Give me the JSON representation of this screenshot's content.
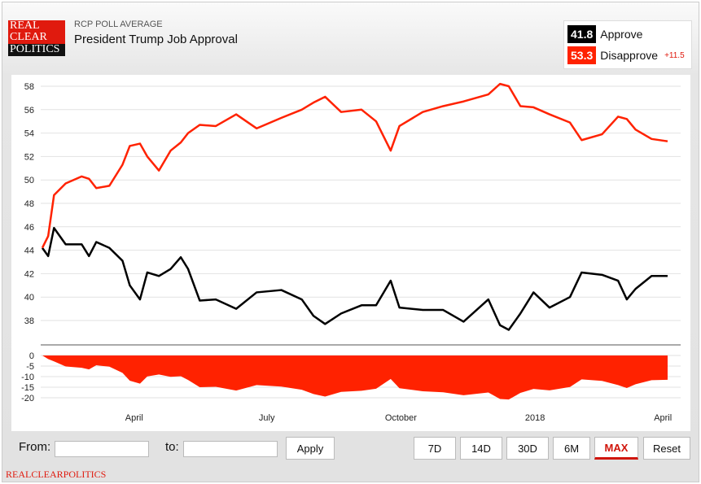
{
  "header": {
    "logo_lines": [
      "REAL",
      "CLEAR",
      "POLITICS"
    ],
    "subtitle": "RCP POLL AVERAGE",
    "title": "President Trump Job Approval"
  },
  "legend": {
    "approve": {
      "value": "41.8",
      "label": "Approve",
      "color": "#000000"
    },
    "disapprove": {
      "value": "53.3",
      "label": "Disapprove",
      "color": "#ff2200"
    },
    "spread": "+11.5"
  },
  "controls": {
    "from_label": "From:",
    "from_value": "",
    "to_label": "to:",
    "to_value": "",
    "apply": "Apply",
    "ranges": [
      "7D",
      "14D",
      "30D",
      "6M",
      "MAX",
      "Reset"
    ],
    "active": "MAX"
  },
  "footer": "REALCLEARPOLITICS",
  "chart_data": {
    "type": "line",
    "title": "President Trump Job Approval",
    "x_ticks": [
      {
        "label": "April",
        "date": "2017-04-01"
      },
      {
        "label": "July",
        "date": "2017-07-01"
      },
      {
        "label": "October",
        "date": "2017-10-01"
      },
      {
        "label": "2018",
        "date": "2018-01-01"
      },
      {
        "label": "April",
        "date": "2018-04-01"
      }
    ],
    "xlim": [
      "2017-01-28",
      "2018-04-02"
    ],
    "ylim": [
      37,
      58.5
    ],
    "y_ticks": [
      38,
      40,
      42,
      44,
      46,
      48,
      50,
      52,
      54,
      56,
      58
    ],
    "spread_ylim": [
      -21,
      0
    ],
    "spread_ticks": [
      0,
      -5,
      -10,
      -15,
      -20
    ],
    "grid": true,
    "series": [
      {
        "name": "Approve",
        "color": "#000000"
      },
      {
        "name": "Disapprove",
        "color": "#ff2200"
      },
      {
        "name": "Spread",
        "color": "#ff2200",
        "type": "area"
      }
    ],
    "points": [
      [
        "2017-01-28",
        44.2,
        44.2
      ],
      [
        "2017-02-01",
        43.5,
        45.2
      ],
      [
        "2017-02-05",
        45.9,
        48.7
      ],
      [
        "2017-02-13",
        44.5,
        49.7
      ],
      [
        "2017-02-24",
        44.5,
        50.3
      ],
      [
        "2017-03-01",
        43.5,
        50.1
      ],
      [
        "2017-03-06",
        44.7,
        49.3
      ],
      [
        "2017-03-15",
        44.2,
        49.5
      ],
      [
        "2017-03-24",
        43.1,
        51.3
      ],
      [
        "2017-03-29",
        41.0,
        52.9
      ],
      [
        "2017-04-05",
        39.8,
        53.1
      ],
      [
        "2017-04-10",
        42.1,
        52.0
      ],
      [
        "2017-04-18",
        41.8,
        50.8
      ],
      [
        "2017-04-26",
        42.4,
        52.5
      ],
      [
        "2017-05-03",
        43.4,
        53.2
      ],
      [
        "2017-05-08",
        42.4,
        54.0
      ],
      [
        "2017-05-16",
        39.7,
        54.7
      ],
      [
        "2017-05-27",
        39.8,
        54.6
      ],
      [
        "2017-06-10",
        39.0,
        55.6
      ],
      [
        "2017-06-24",
        40.4,
        54.4
      ],
      [
        "2017-07-11",
        40.6,
        55.3
      ],
      [
        "2017-07-25",
        39.8,
        56.0
      ],
      [
        "2017-08-02",
        38.4,
        56.6
      ],
      [
        "2017-08-10",
        37.7,
        57.1
      ],
      [
        "2017-08-21",
        38.6,
        55.8
      ],
      [
        "2017-09-04",
        39.3,
        56.0
      ],
      [
        "2017-09-14",
        39.3,
        55.0
      ],
      [
        "2017-09-24",
        41.4,
        52.5
      ],
      [
        "2017-09-30",
        39.1,
        54.6
      ],
      [
        "2017-10-16",
        38.9,
        55.8
      ],
      [
        "2017-10-30",
        38.9,
        56.3
      ],
      [
        "2017-11-13",
        37.9,
        56.7
      ],
      [
        "2017-11-30",
        39.8,
        57.3
      ],
      [
        "2017-12-08",
        37.6,
        58.2
      ],
      [
        "2017-12-14",
        37.2,
        58.0
      ],
      [
        "2017-12-22",
        38.6,
        56.3
      ],
      [
        "2017-12-31",
        40.4,
        56.2
      ],
      [
        "2018-01-11",
        39.1,
        55.6
      ],
      [
        "2018-01-25",
        40.0,
        54.9
      ],
      [
        "2018-02-02",
        42.1,
        53.4
      ],
      [
        "2018-02-16",
        41.9,
        53.9
      ],
      [
        "2018-02-27",
        41.4,
        55.4
      ],
      [
        "2018-03-05",
        39.8,
        55.2
      ],
      [
        "2018-03-11",
        40.7,
        54.3
      ],
      [
        "2018-03-22",
        41.8,
        53.5
      ],
      [
        "2018-04-02",
        41.8,
        53.3
      ]
    ]
  }
}
